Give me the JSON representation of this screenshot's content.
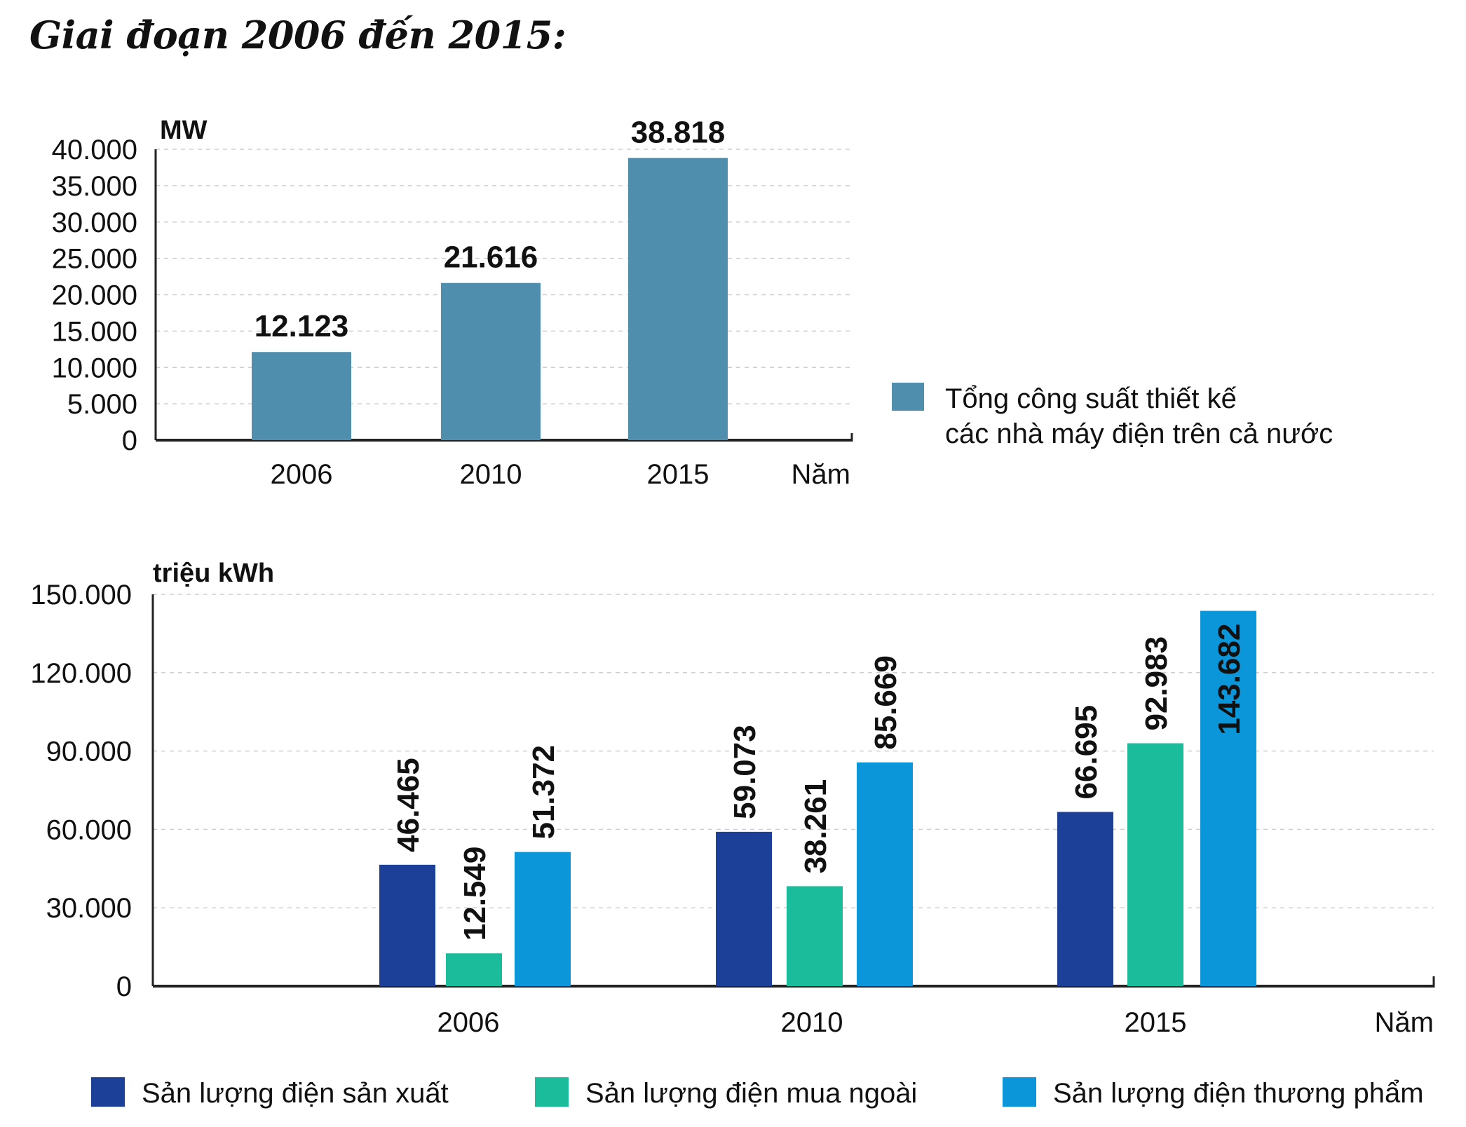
{
  "title": "Giai đoạn 2006 đến 2015:",
  "chart_data": [
    {
      "type": "bar",
      "ylabel": "MW",
      "xlabel": "Năm",
      "categories": [
        "2006",
        "2010",
        "2015"
      ],
      "values": [
        12123,
        21616,
        38818
      ],
      "value_labels": [
        "12.123",
        "21.616",
        "38.818"
      ],
      "ylim": [
        0,
        40000
      ],
      "yticks": [
        0,
        5000,
        10000,
        15000,
        20000,
        25000,
        30000,
        35000,
        40000
      ],
      "ytick_labels": [
        "0",
        "5.000",
        "10.000",
        "15.000",
        "20.000",
        "25.000",
        "30.000",
        "35.000",
        "40.000"
      ],
      "grid": true,
      "color": "#4f8fad",
      "legend": {
        "placement": "right",
        "lines": [
          "Tổng công suất thiết kế",
          "các nhà máy điện trên cả nước"
        ]
      }
    },
    {
      "type": "bar",
      "ylabel": "triệu kWh",
      "xlabel": "Năm",
      "categories": [
        "2006",
        "2010",
        "2015"
      ],
      "series": [
        {
          "name": "Sản lượng điện sản xuất",
          "color": "#1c3f97",
          "values": [
            46465,
            59073,
            66695
          ],
          "value_labels": [
            "46.465",
            "59.073",
            "66.695"
          ]
        },
        {
          "name": "Sản lượng điện mua ngoài",
          "color": "#1abc9c",
          "values": [
            12549,
            38261,
            92983
          ],
          "value_labels": [
            "12.549",
            "38.261",
            "92.983"
          ]
        },
        {
          "name": "Sản lượng điện thương phẩm",
          "color": "#0b96d9",
          "values": [
            51372,
            85669,
            143682
          ],
          "value_labels": [
            "51.372",
            "85.669",
            "143.682"
          ]
        }
      ],
      "ylim": [
        0,
        150000
      ],
      "yticks": [
        0,
        30000,
        60000,
        90000,
        120000,
        150000
      ],
      "ytick_labels": [
        "0",
        "30.000",
        "60.000",
        "90.000",
        "120.000",
        "150.000"
      ],
      "grid": true,
      "legend": {
        "placement": "bottom"
      }
    }
  ]
}
